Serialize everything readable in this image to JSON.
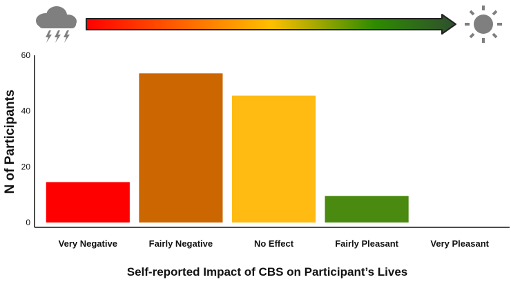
{
  "chart_data": {
    "type": "bar",
    "categories": [
      "Very Negative",
      "Fairly Negative",
      "No Effect",
      "Fairly Pleasant",
      "Very Pleasant"
    ],
    "values": [
      14.5,
      53.5,
      45.5,
      9.5,
      0
    ],
    "colors": [
      "#ff0000",
      "#cc6600",
      "#ffbb11",
      "#4a8a10",
      "#ffffff"
    ],
    "xlabel": "Self-reported Impact of CBS on Participant’s Lives",
    "ylabel": "N of Participants",
    "ylim": [
      0,
      60
    ],
    "yticks": [
      0,
      20,
      40,
      60
    ],
    "grid": false,
    "legend": "none",
    "scale_arrow": {
      "gradient_colors": [
        "#ff0000",
        "#ffbf00",
        "#2e8b00",
        "#2f4f2f"
      ],
      "left_icon": "storm-cloud-icon",
      "right_icon": "sun-icon"
    }
  }
}
